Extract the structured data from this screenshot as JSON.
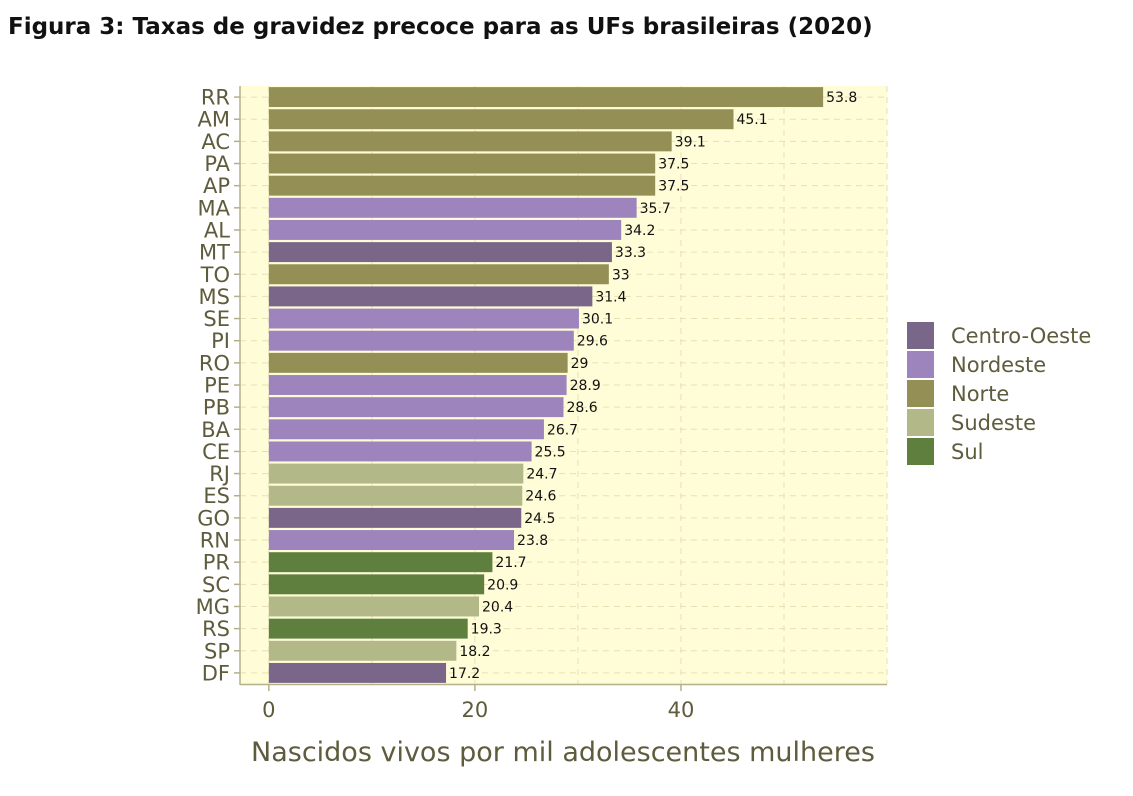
{
  "title": "Figura 3: Taxas de gravidez precoce para as UFs brasileiras (2020)",
  "chart_data": {
    "type": "bar",
    "orientation": "horizontal",
    "xlabel": "Nascidos vivos por mil adolescentes mulheres",
    "ylabel": "",
    "xlim": [
      -2.8,
      60
    ],
    "xticks": [
      0,
      20,
      40
    ],
    "grid": true,
    "legend_position": "right",
    "categories": [
      "RR",
      "AM",
      "AC",
      "PA",
      "AP",
      "MA",
      "AL",
      "MT",
      "TO",
      "MS",
      "SE",
      "PI",
      "RO",
      "PE",
      "PB",
      "BA",
      "CE",
      "RJ",
      "ES",
      "GO",
      "RN",
      "PR",
      "SC",
      "MG",
      "RS",
      "SP",
      "DF"
    ],
    "values": [
      53.8,
      45.1,
      39.1,
      37.5,
      37.5,
      35.7,
      34.2,
      33.3,
      33,
      31.4,
      30.1,
      29.6,
      29,
      28.9,
      28.6,
      26.7,
      25.5,
      24.7,
      24.6,
      24.5,
      23.8,
      21.7,
      20.9,
      20.4,
      19.3,
      18.2,
      17.2
    ],
    "labels": [
      "53.8",
      "45.1",
      "39.1",
      "37.5",
      "37.5",
      "35.7",
      "34.2",
      "33.3",
      "33",
      "31.4",
      "30.1",
      "29.6",
      "29",
      "28.9",
      "28.6",
      "26.7",
      "25.5",
      "24.7",
      "24.6",
      "24.5",
      "23.8",
      "21.7",
      "20.9",
      "20.4",
      "19.3",
      "18.2",
      "17.2"
    ],
    "regions": [
      "Norte",
      "Norte",
      "Norte",
      "Norte",
      "Norte",
      "Nordeste",
      "Nordeste",
      "Centro-Oeste",
      "Norte",
      "Centro-Oeste",
      "Nordeste",
      "Nordeste",
      "Norte",
      "Nordeste",
      "Nordeste",
      "Nordeste",
      "Nordeste",
      "Sudeste",
      "Sudeste",
      "Centro-Oeste",
      "Nordeste",
      "Sul",
      "Sul",
      "Sudeste",
      "Sul",
      "Sudeste",
      "Centro-Oeste"
    ],
    "legend": [
      {
        "name": "Centro-Oeste",
        "color": "#7a6689"
      },
      {
        "name": "Nordeste",
        "color": "#9d84bd"
      },
      {
        "name": "Norte",
        "color": "#938f55"
      },
      {
        "name": "Sudeste",
        "color": "#b2b888"
      },
      {
        "name": "Sul",
        "color": "#5e7f3e"
      }
    ],
    "colors": {
      "panel": "#fffcd8",
      "axis": "#b5b088",
      "text": "#5e5c3c"
    }
  }
}
